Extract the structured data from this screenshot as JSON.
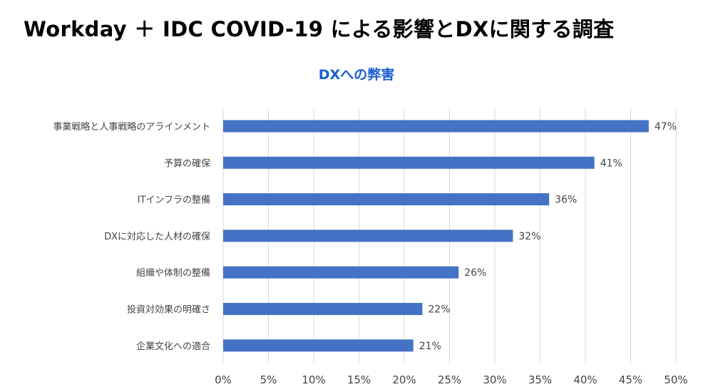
{
  "header": {
    "title": "Workday ＋ IDC COVID-19 による影響とDXに関する調査"
  },
  "chart_data": {
    "type": "bar",
    "orientation": "horizontal",
    "title": "DXへの弊害",
    "categories": [
      "事業戦略と人事戦略のアラインメント",
      "予算の確保",
      "ITインフラの整備",
      "DXに対応した人材の確保",
      "組織や体制の整備",
      "投資対効果の明確さ",
      "企業文化への適合"
    ],
    "values": [
      47,
      41,
      36,
      32,
      26,
      22,
      21
    ],
    "value_labels": [
      "47%",
      "41%",
      "36%",
      "32%",
      "26%",
      "22%",
      "21%"
    ],
    "xlim": [
      0,
      50
    ],
    "xticks": [
      0,
      5,
      10,
      15,
      20,
      25,
      30,
      35,
      40,
      45,
      50
    ],
    "xtick_labels": [
      "0%",
      "5%",
      "10%",
      "15%",
      "20%",
      "25%",
      "30%",
      "35%",
      "40%",
      "45%",
      "50%"
    ],
    "grid": true,
    "bar_color": "#4472C4",
    "xlabel": "",
    "ylabel": ""
  }
}
